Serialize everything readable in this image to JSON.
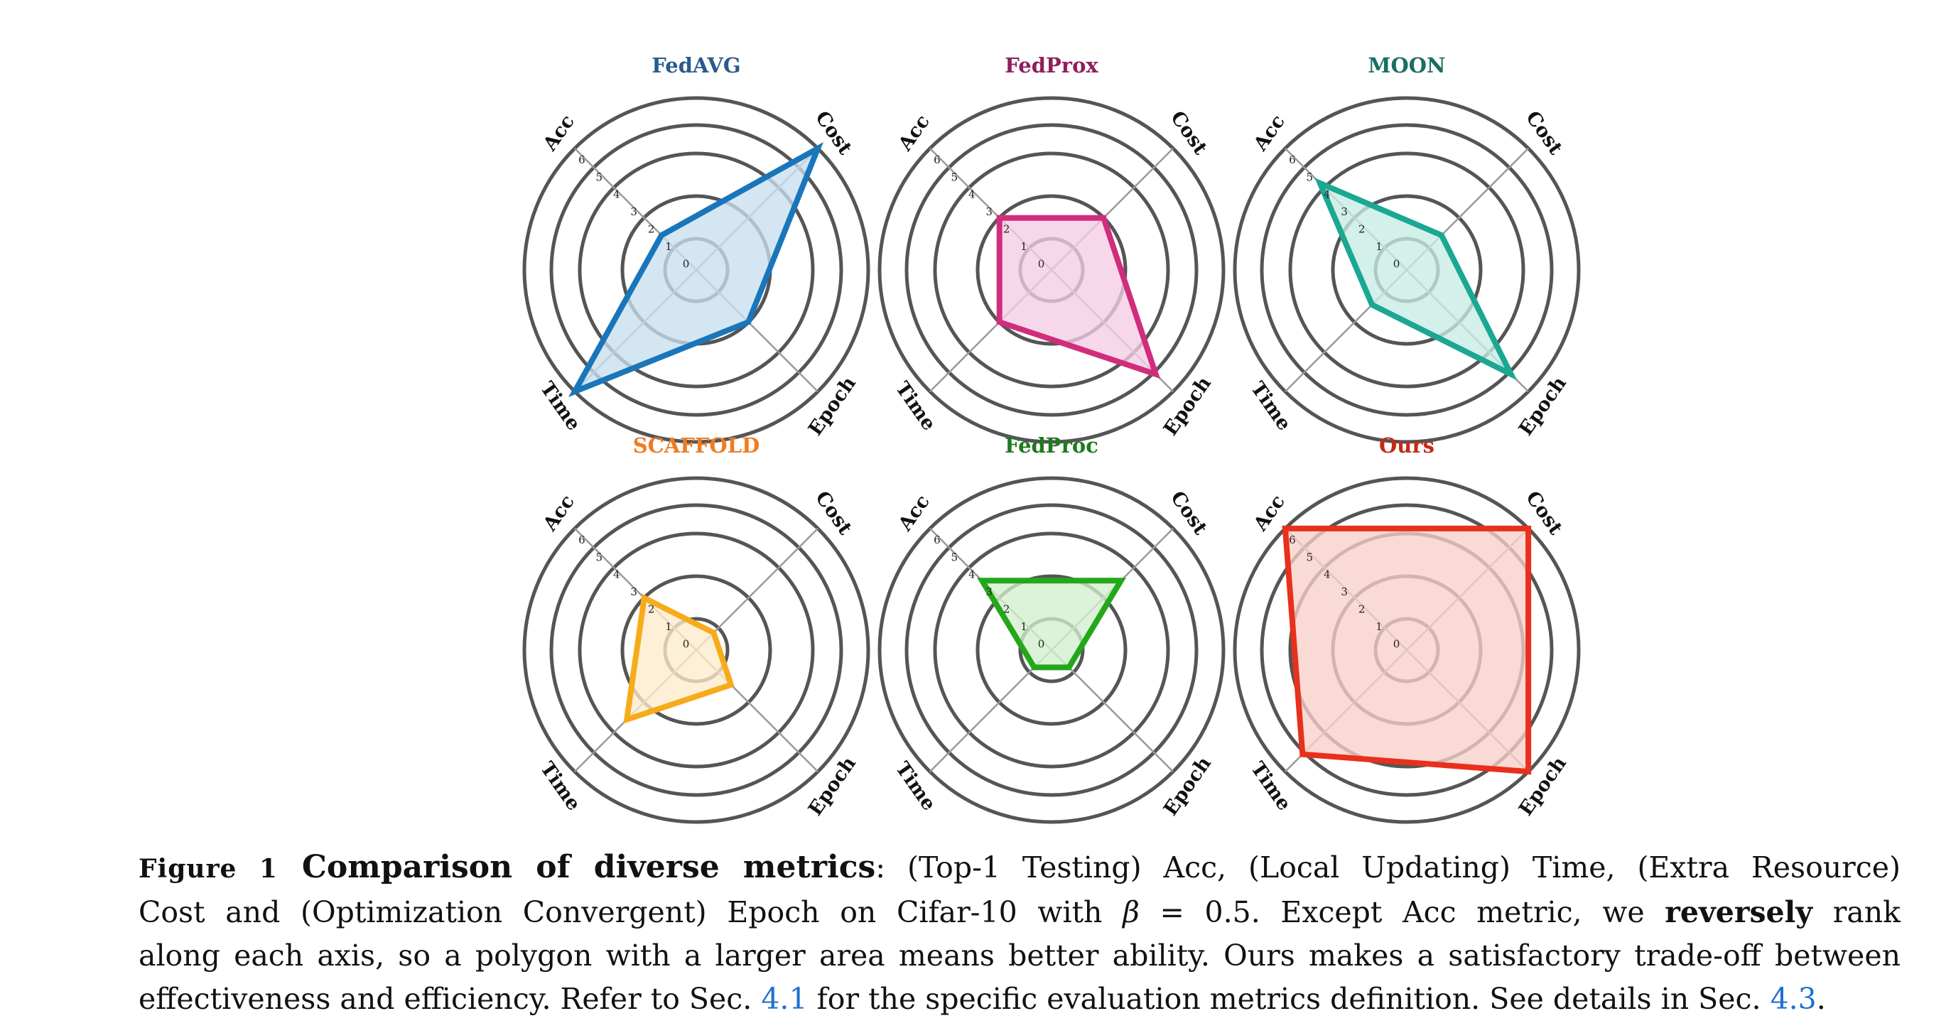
{
  "axes": [
    "Acc",
    "Cost",
    "Epoch",
    "Time"
  ],
  "tick_labels": [
    "0",
    "1",
    "2",
    "3",
    "4",
    "5",
    "6"
  ],
  "chart_data": [
    {
      "type": "radar",
      "title": "FedAVG",
      "color": "#2a5a8c",
      "line_color": "#1a76bb",
      "fill_color": "#c9dff0",
      "series": [
        {
          "values": {
            "Acc": 2,
            "Cost": 7,
            "Epoch": 3,
            "Time": 7
          }
        }
      ]
    },
    {
      "type": "radar",
      "title": "FedProx",
      "color": "#8f1f5c",
      "line_color": "#d12d7d",
      "fill_color": "#f5cde6",
      "series": [
        {
          "values": {
            "Acc": 3,
            "Cost": 3,
            "Epoch": 6,
            "Time": 3
          }
        }
      ]
    },
    {
      "type": "radar",
      "title": "MOON",
      "color": "#1a6e64",
      "line_color": "#1aa893",
      "fill_color": "#c8ece4",
      "series": [
        {
          "values": {
            "Acc": 5,
            "Cost": 2,
            "Epoch": 6,
            "Time": 2
          }
        }
      ]
    },
    {
      "type": "radar",
      "title": "SCAFFOLD",
      "color": "#ee7c22",
      "line_color": "#f6ab1b",
      "fill_color": "#fdeccb",
      "series": [
        {
          "values": {
            "Acc": 3,
            "Cost": 1,
            "Epoch": 2,
            "Time": 4
          }
        }
      ]
    },
    {
      "type": "radar",
      "title": "FedProc",
      "color": "#1f7a1f",
      "line_color": "#23a81a",
      "fill_color": "#d2efce",
      "series": [
        {
          "values": {
            "Acc": 4,
            "Cost": 4,
            "Epoch": 1,
            "Time": 1
          }
        }
      ]
    },
    {
      "type": "radar",
      "title": "Ours",
      "color": "#c42a16",
      "line_color": "#e8301c",
      "fill_color": "#f8d0c8",
      "series": [
        {
          "values": {
            "Acc": 7,
            "Cost": 7,
            "Epoch": 7,
            "Time": 6
          }
        }
      ]
    }
  ],
  "caption": {
    "figure_label": "Figure 1",
    "title": "Comparison of diverse metrics",
    "line1_rest": ": (Top-1 Testing) Acc, (Local Updating) Time, (Extra Resource)",
    "line2_a": "Cost and (Optimization Convergent) Epoch on Cifar-10 with ",
    "line2_beta": "β",
    "line2_b": " = 0.5.  Except Acc metric, we ",
    "line2_bold": "reversely",
    "line2_c": " rank",
    "line3": "along each axis, so a polygon with a larger area means better ability. Ours makes a satisfactory trade-off between",
    "line4_a": "effectiveness and efficiency. Refer to Sec. ",
    "line4_ref1": "4.1",
    "line4_b": " for the specific evaluation metrics definition. See details in Sec. ",
    "line4_ref2": "4.3",
    "line4_c": "."
  }
}
